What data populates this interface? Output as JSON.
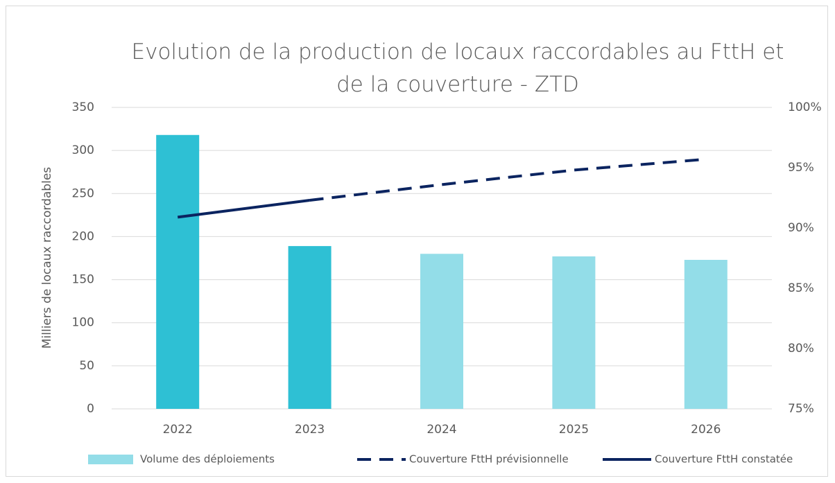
{
  "chart_data": {
    "type": "bar_line",
    "title": "Evolution de la production de locaux raccordables au FttH et de la couverture - ZTD",
    "ylabel": "Milliers de locaux raccordables",
    "categories": [
      "2022",
      "2023",
      "2024",
      "2025",
      "2026"
    ],
    "series": [
      {
        "name": "Volume des déploiements",
        "type": "bar",
        "color": "#93dde8",
        "colors": [
          "#2ec0d4",
          "#2ec0d4",
          "#93dde8",
          "#93dde8",
          "#93dde8"
        ],
        "values": [
          318,
          189,
          180,
          177,
          173
        ]
      },
      {
        "name": "Couverture FttH prévisionnelle",
        "type": "line",
        "dashed": true,
        "color": "#0b2460",
        "axis": "y2",
        "values": [
          null,
          92.3,
          93.6,
          94.8,
          95.7
        ]
      },
      {
        "name": "Couverture FttH constatée",
        "type": "line",
        "dashed": false,
        "color": "#0b2460",
        "axis": "y2",
        "values": [
          90.9,
          92.3,
          null,
          null,
          null
        ]
      }
    ],
    "ylim": [
      0,
      350
    ],
    "yticks": [
      0,
      50,
      100,
      150,
      200,
      250,
      300,
      350
    ],
    "y2lim": [
      75,
      100
    ],
    "y2ticks": [
      {
        "value": 75,
        "label": "75%"
      },
      {
        "value": 80,
        "label": "80%"
      },
      {
        "value": 85,
        "label": "85%"
      },
      {
        "value": 90,
        "label": "90%"
      },
      {
        "value": 95,
        "label": "95%"
      },
      {
        "value": 100,
        "label": "100%"
      }
    ],
    "grid": true
  }
}
